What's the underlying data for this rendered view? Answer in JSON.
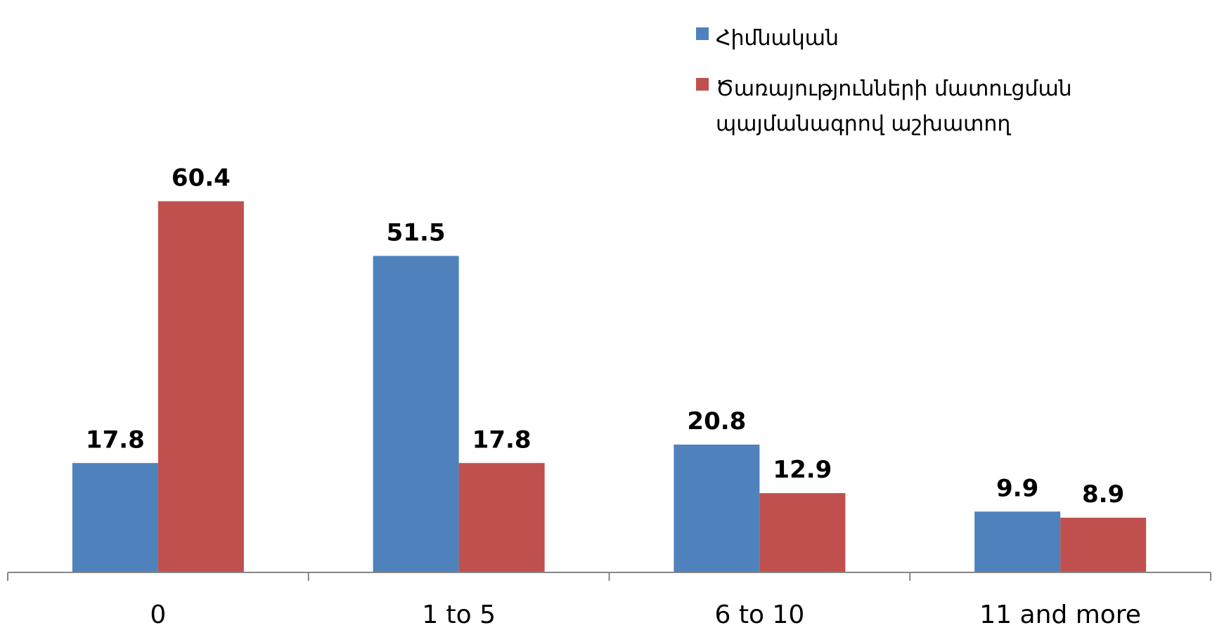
{
  "chart_data": {
    "type": "bar",
    "categories": [
      "0",
      "1 to 5",
      "6 to 10",
      "11 and more"
    ],
    "series": [
      {
        "name": "Հիմնական",
        "color": "#4F81BD",
        "values": [
          17.8,
          51.5,
          20.8,
          9.9
        ]
      },
      {
        "name": "Ծառայությունների մատուցման պայմանագրով աշխատող",
        "color": "#C0504D",
        "values": [
          60.4,
          17.8,
          12.9,
          8.9
        ]
      }
    ],
    "data_labels": [
      [
        "17.8",
        "51.5",
        "20.8",
        "9.9"
      ],
      [
        "60.4",
        "17.8",
        "12.9",
        "8.9"
      ]
    ],
    "title": "",
    "xlabel": "",
    "ylabel": "",
    "ylim": [
      0,
      65
    ],
    "grid": false,
    "legend_position": "top-right"
  }
}
